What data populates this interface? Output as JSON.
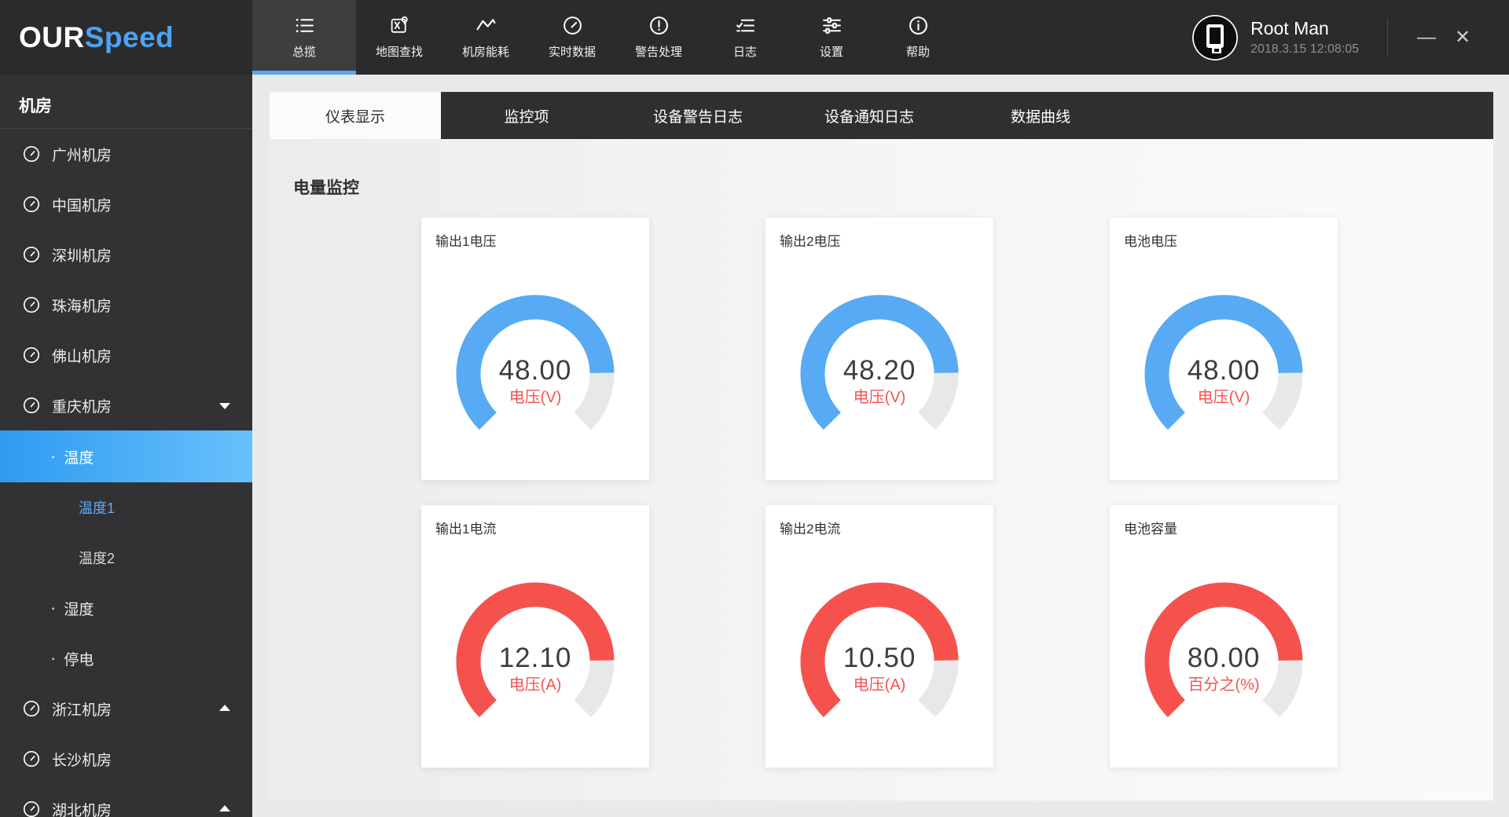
{
  "brand": {
    "logo_primary": "OUR",
    "logo_accent": "Speed"
  },
  "user": {
    "name": "Root Man",
    "datetime": "2018.3.15 12:08:05"
  },
  "window_controls": {
    "minimize_glyph": "—",
    "close_glyph": "✕"
  },
  "topnav": {
    "items": [
      {
        "id": "overview",
        "label": "总揽",
        "icon": "list-icon",
        "active": true
      },
      {
        "id": "map-search",
        "label": "地图查找",
        "icon": "map-search-icon",
        "active": false
      },
      {
        "id": "room-energy",
        "label": "机房能耗",
        "icon": "pulse-icon",
        "active": false
      },
      {
        "id": "realtime-data",
        "label": "实时数据",
        "icon": "gauge-icon",
        "active": false
      },
      {
        "id": "alert-handling",
        "label": "警告处理",
        "icon": "alert-icon",
        "active": false
      },
      {
        "id": "logs",
        "label": "日志",
        "icon": "log-icon",
        "active": false
      },
      {
        "id": "settings",
        "label": "设置",
        "icon": "settings-icon",
        "active": false
      },
      {
        "id": "help",
        "label": "帮助",
        "icon": "help-icon",
        "active": false
      }
    ]
  },
  "sidebar": {
    "title": "机房",
    "bullet_glyph": "·",
    "items": [
      {
        "id": "guangzhou-room",
        "label": "广州机房",
        "type": "room",
        "caret": "none",
        "selected": false,
        "highlight": false
      },
      {
        "id": "china-room",
        "label": "中国机房",
        "type": "room",
        "caret": "none",
        "selected": false,
        "highlight": false
      },
      {
        "id": "shenzhen-room",
        "label": "深圳机房",
        "type": "room",
        "caret": "none",
        "selected": false,
        "highlight": false
      },
      {
        "id": "zhuhai-room",
        "label": "珠海机房",
        "type": "room",
        "caret": "none",
        "selected": false,
        "highlight": false
      },
      {
        "id": "foshan-room",
        "label": "佛山机房",
        "type": "room",
        "caret": "none",
        "selected": false,
        "highlight": false
      },
      {
        "id": "chongqing-room",
        "label": "重庆机房",
        "type": "room",
        "caret": "down",
        "selected": false,
        "highlight": false
      },
      {
        "id": "temperature",
        "label": "温度",
        "type": "sub",
        "caret": "none",
        "selected": true,
        "highlight": false
      },
      {
        "id": "temperature-1",
        "label": "温度1",
        "type": "subsub",
        "caret": "none",
        "selected": false,
        "highlight": true
      },
      {
        "id": "temperature-2",
        "label": "温度2",
        "type": "subsub",
        "caret": "none",
        "selected": false,
        "highlight": false
      },
      {
        "id": "humidity",
        "label": "湿度",
        "type": "sub",
        "caret": "none",
        "selected": false,
        "highlight": false
      },
      {
        "id": "power-outage",
        "label": "停电",
        "type": "sub",
        "caret": "none",
        "selected": false,
        "highlight": false
      },
      {
        "id": "zhejiang-room",
        "label": "浙江机房",
        "type": "room",
        "caret": "up",
        "selected": false,
        "highlight": false
      },
      {
        "id": "changsha-room",
        "label": "长沙机房",
        "type": "room",
        "caret": "none",
        "selected": false,
        "highlight": false
      },
      {
        "id": "hubei-room",
        "label": "湖北机房",
        "type": "room",
        "caret": "up",
        "selected": false,
        "highlight": false
      }
    ]
  },
  "content": {
    "tabs": [
      {
        "id": "gauge-display",
        "label": "仪表显示",
        "active": true
      },
      {
        "id": "monitor-items",
        "label": "监控项",
        "active": false
      },
      {
        "id": "device-alert-log",
        "label": "设备警告日志",
        "active": false
      },
      {
        "id": "device-notice-log",
        "label": "设备通知日志",
        "active": false
      },
      {
        "id": "data-curve",
        "label": "数据曲线",
        "active": false
      }
    ],
    "section_title": "电量监控"
  },
  "colors": {
    "accent_blue": "#57aaf3",
    "accent_red": "#f5524e",
    "gauge_track": "#e8e8e8",
    "selected_gradient_start": "#2e9bf2",
    "selected_gradient_end": "#68c1fb"
  },
  "chart_data": [
    {
      "type": "gauge",
      "id": "output1-voltage",
      "title": "输出1电压",
      "value": "48.00",
      "unit_label": "电压(V)",
      "color": "#57aaf3",
      "fraction": 0.83,
      "arc_span_deg": 270
    },
    {
      "type": "gauge",
      "id": "output2-voltage",
      "title": "输出2电压",
      "value": "48.20",
      "unit_label": "电压(V)",
      "color": "#57aaf3",
      "fraction": 0.83,
      "arc_span_deg": 270
    },
    {
      "type": "gauge",
      "id": "battery-voltage",
      "title": "电池电压",
      "value": "48.00",
      "unit_label": "电压(V)",
      "color": "#57aaf3",
      "fraction": 0.83,
      "arc_span_deg": 270
    },
    {
      "type": "gauge",
      "id": "output1-current",
      "title": "输出1电流",
      "value": "12.10",
      "unit_label": "电压(A)",
      "color": "#f5524e",
      "fraction": 0.83,
      "arc_span_deg": 270
    },
    {
      "type": "gauge",
      "id": "output2-current",
      "title": "输出2电流",
      "value": "10.50",
      "unit_label": "电压(A)",
      "color": "#f5524e",
      "fraction": 0.83,
      "arc_span_deg": 270
    },
    {
      "type": "gauge",
      "id": "battery-capacity",
      "title": "电池容量",
      "value": "80.00",
      "unit_label": "百分之(%)",
      "color": "#f5524e",
      "fraction": 0.83,
      "arc_span_deg": 270
    }
  ]
}
